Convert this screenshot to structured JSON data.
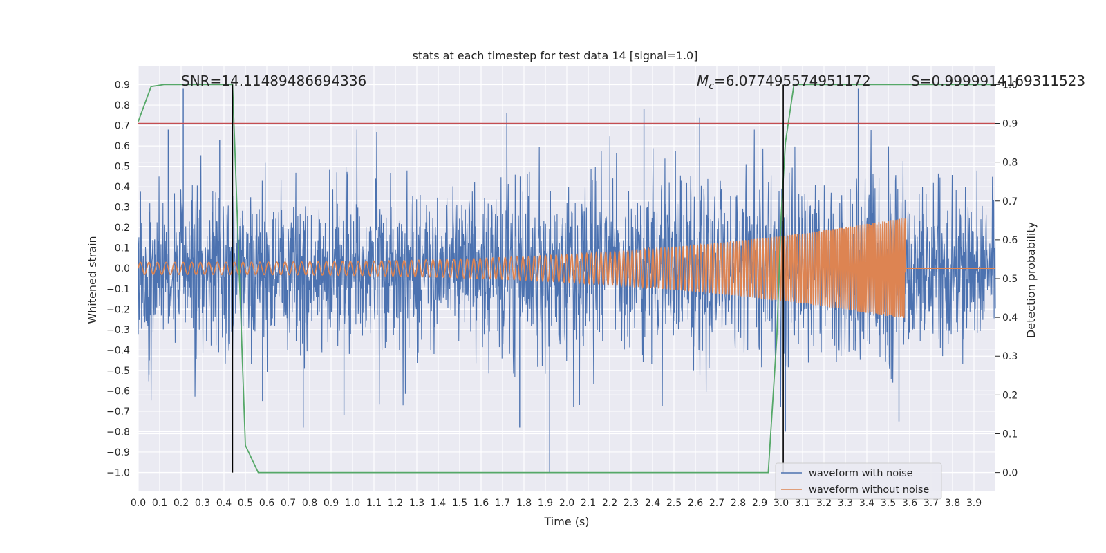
{
  "chart_data": {
    "type": "line",
    "title": "stats at each timestep for test data 14 [signal=1.0]",
    "xlabel": "Time (s)",
    "ylabel": "Whitened strain",
    "y2label": "Detection probability",
    "xlim": [
      0.0,
      4.0
    ],
    "ylim": [
      -1.09,
      0.99
    ],
    "y2lim": [
      -0.047,
      1.047
    ],
    "grid": true,
    "x_ticks": [
      "0.0",
      "0.1",
      "0.2",
      "0.3",
      "0.4",
      "0.5",
      "0.6",
      "0.7",
      "0.8",
      "0.9",
      "1.0",
      "1.1",
      "1.2",
      "1.3",
      "1.4",
      "1.5",
      "1.6",
      "1.7",
      "1.8",
      "1.9",
      "2.0",
      "2.1",
      "2.2",
      "2.3",
      "2.4",
      "2.5",
      "2.6",
      "2.7",
      "2.8",
      "2.9",
      "3.0",
      "3.1",
      "3.2",
      "3.3",
      "3.4",
      "3.5",
      "3.6",
      "3.7",
      "3.8",
      "3.9"
    ],
    "y_ticks": [
      "0.9",
      "0.8",
      "0.7",
      "0.6",
      "0.5",
      "0.4",
      "0.3",
      "0.2",
      "0.1",
      "0.0",
      "−0.1",
      "−0.2",
      "−0.3",
      "−0.4",
      "−0.5",
      "−0.6",
      "−0.7",
      "−0.8",
      "−0.9",
      "−1.0"
    ],
    "y2_ticks": [
      "1.0",
      "0.9",
      "0.8",
      "0.7",
      "0.6",
      "0.5",
      "0.4",
      "0.3",
      "0.2",
      "0.1",
      "0.0"
    ],
    "threshold": {
      "value": 0.9,
      "axis": "y2",
      "color": "#c44e52"
    },
    "vertical_markers": [
      0.44,
      3.01
    ],
    "noise_std": 0.2,
    "noise_spikes": [
      {
        "t": 0.21,
        "v": 0.88
      },
      {
        "t": 0.14,
        "v": 0.68
      },
      {
        "t": 0.38,
        "v": 0.63
      },
      {
        "t": 0.05,
        "v": -0.52
      },
      {
        "t": 0.58,
        "v": -0.65
      },
      {
        "t": 0.77,
        "v": -0.78
      },
      {
        "t": 0.96,
        "v": -0.72
      },
      {
        "t": 1.72,
        "v": 0.76
      },
      {
        "t": 1.78,
        "v": -0.78
      },
      {
        "t": 1.92,
        "v": -1.0
      },
      {
        "t": 2.36,
        "v": 0.78
      },
      {
        "t": 2.62,
        "v": 0.74
      },
      {
        "t": 3.02,
        "v": -0.8
      },
      {
        "t": 3.36,
        "v": 0.88
      },
      {
        "t": 3.55,
        "v": -0.75
      }
    ],
    "series": [
      {
        "name": "waveform with noise",
        "axis": "y",
        "color": "#4c72b0"
      },
      {
        "name": "waveform without noise",
        "axis": "y",
        "color": "#dd8452",
        "chirp": {
          "amp_start": 0.03,
          "amp_end": 0.25,
          "f_start": 25,
          "f_end": 120,
          "t_merge": 3.58
        }
      },
      {
        "name": "detection probability",
        "axis": "y2",
        "color": "#55a868",
        "x": [
          0.0,
          0.06,
          0.12,
          0.2,
          0.3,
          0.4,
          0.44,
          0.45,
          0.5,
          0.56,
          0.7,
          1.5,
          2.4,
          2.94,
          2.98,
          3.0,
          3.02,
          3.06,
          3.2,
          3.5,
          3.9,
          4.0
        ],
        "values": [
          0.905,
          0.995,
          1.0,
          1.0,
          1.0,
          1.0,
          1.0,
          0.85,
          0.07,
          0.0,
          0.0,
          0.0,
          0.0,
          0.0,
          0.35,
          0.66,
          0.85,
          1.0,
          1.0,
          1.0,
          1.0,
          1.0
        ]
      }
    ],
    "annotations": {
      "snr": "SNR=14.11489486694336",
      "mc_symbol": "M",
      "mc_sub": "c",
      "mc_value": "=6.077495574951172",
      "s": "S=0.9999914169311523"
    },
    "legend": {
      "position": "lower-right",
      "entries": [
        {
          "label": "waveform with noise",
          "color": "#4c72b0"
        },
        {
          "label": "waveform without noise",
          "color": "#dd8452"
        }
      ]
    }
  }
}
